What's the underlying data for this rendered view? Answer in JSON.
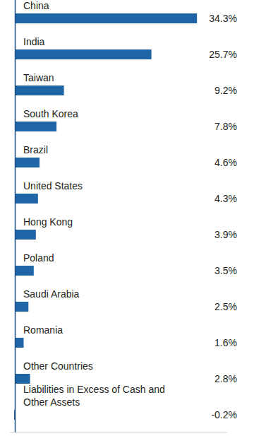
{
  "chart_data": {
    "type": "bar",
    "orientation": "horizontal",
    "categories": [
      "China",
      "India",
      "Taiwan",
      "South Korea",
      "Brazil",
      "United States",
      "Hong Kong",
      "Poland",
      "Saudi Arabia",
      "Romania",
      "Other Countries",
      "Liabilities in Excess of Cash and Other Assets"
    ],
    "values": [
      34.3,
      25.7,
      9.2,
      7.8,
      4.6,
      4.3,
      3.9,
      3.5,
      2.5,
      1.6,
      2.8,
      -0.2
    ],
    "value_labels": [
      "34.3%",
      "25.7%",
      "9.2%",
      "7.8%",
      "4.6%",
      "4.3%",
      "3.9%",
      "3.5%",
      "2.5%",
      "1.6%",
      "2.8%",
      "-0.2%"
    ],
    "color": "#1f65a6",
    "xlim": [
      -1,
      40
    ],
    "xticks": [
      0
    ],
    "tick_labels": false,
    "data_labels": true,
    "grid": false
  }
}
